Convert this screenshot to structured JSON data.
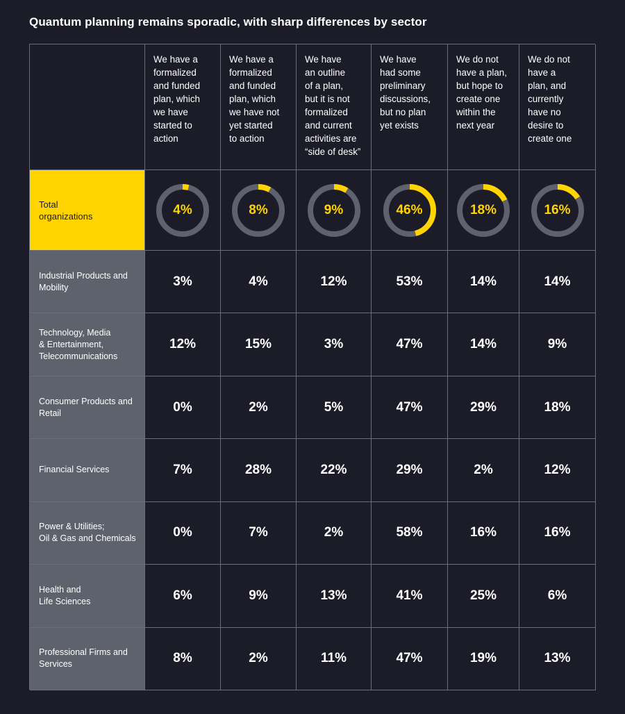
{
  "title": "Quantum planning remains sporadic, with sharp differences by sector",
  "colors": {
    "accent": "#ffd400",
    "background": "#1b1c28",
    "ring_track": "#5e626c",
    "label_bg": "#5e626c"
  },
  "chart_data": {
    "type": "table",
    "columns": [
      "We have a\nformalized\nand funded\nplan, which\nwe have\nstarted to\naction",
      "We have a\nformalized\nand funded\nplan, which\nwe have not\nyet started\nto action",
      "We have\nan outline\nof a plan,\nbut it is not\nformalized\nand current\nactivities are\n“side of desk”",
      "We have\nhad some\npreliminary\ndiscussions,\nbut no plan\nyet exists",
      "We do not\nhave a plan,\nbut hope to\ncreate one\nwithin the\nnext year",
      "We do not\nhave a\nplan, and\ncurrently\nhave no\ndesire to\ncreate one"
    ],
    "total": {
      "label": "Total\norganizations",
      "values": [
        4,
        8,
        9,
        46,
        18,
        16
      ],
      "labels": [
        "4%",
        "8%",
        "9%",
        "46%",
        "18%",
        "16%"
      ]
    },
    "rows": [
      {
        "label": "Industrial Products and\nMobility",
        "values": [
          "3%",
          "4%",
          "12%",
          "53%",
          "14%",
          "14%"
        ]
      },
      {
        "label": "Technology, Media\n& Entertainment,\nTelecommunications",
        "values": [
          "12%",
          "15%",
          "3%",
          "47%",
          "14%",
          "9%"
        ]
      },
      {
        "label": "Consumer Products and\nRetail",
        "values": [
          "0%",
          "2%",
          "5%",
          "47%",
          "29%",
          "18%"
        ]
      },
      {
        "label": "Financial Services",
        "values": [
          "7%",
          "28%",
          "22%",
          "29%",
          "2%",
          "12%"
        ]
      },
      {
        "label": "Power & Utilities;\nOil & Gas and Chemicals",
        "values": [
          "0%",
          "7%",
          "2%",
          "58%",
          "16%",
          "16%"
        ]
      },
      {
        "label": "Health and\nLife Sciences",
        "values": [
          "6%",
          "9%",
          "13%",
          "41%",
          "25%",
          "6%"
        ]
      },
      {
        "label": "Professional Firms and\nServices",
        "values": [
          "8%",
          "2%",
          "11%",
          "47%",
          "19%",
          "13%"
        ]
      }
    ]
  }
}
